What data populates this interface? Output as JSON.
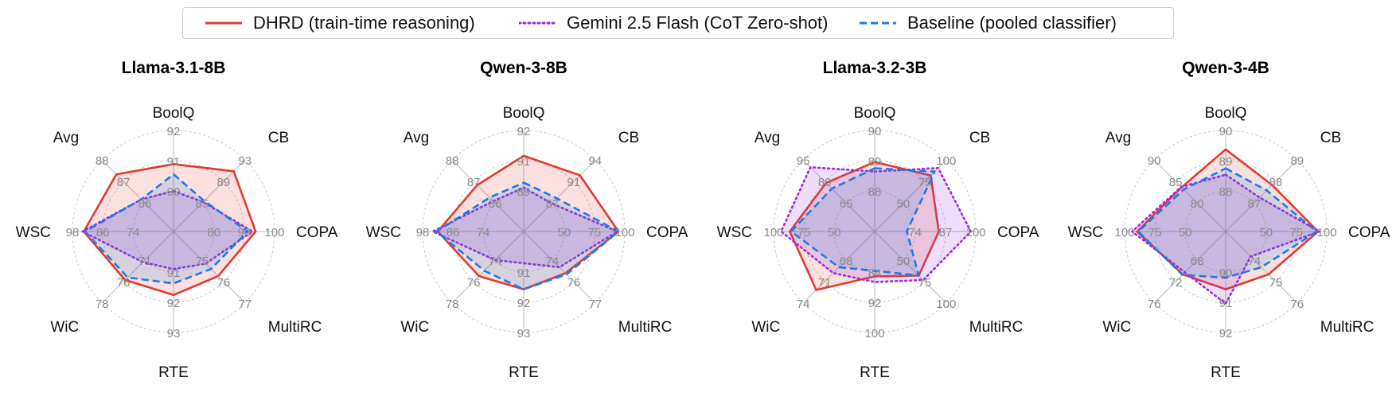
{
  "legend": [
    {
      "label": "DHRD (train-time reasoning)",
      "color": "#e03c31",
      "dash": "solid"
    },
    {
      "label": "Gemini 2.5 Flash (CoT Zero-shot)",
      "color": "#9b30d9",
      "dash": "dotted"
    },
    {
      "label": "Baseline (pooled classifier)",
      "color": "#1f7ae8",
      "dash": "dashed"
    }
  ],
  "chart_data": [
    {
      "type": "radar",
      "title": "Llama-3.1-8B",
      "axes": [
        "BoolQ",
        "CB",
        "COPA",
        "MultiRC",
        "RTE",
        "WiC",
        "WSC",
        "Avg"
      ],
      "tick_labels": [
        [
          "90",
          "91",
          "92"
        ],
        [
          "85",
          "89",
          "93"
        ],
        [
          "80",
          "90",
          "100"
        ],
        [
          "75",
          "76",
          "77"
        ],
        [
          "91",
          "92",
          "93"
        ],
        [
          "71",
          "76",
          "78"
        ],
        [
          "74",
          "86",
          "98"
        ],
        [
          "86",
          "87",
          "88"
        ]
      ],
      "axis_ranges": [
        [
          89,
          92
        ],
        [
          81,
          95
        ],
        [
          70,
          102
        ],
        [
          74,
          78
        ],
        [
          90,
          93.5
        ],
        [
          66,
          80
        ],
        [
          62,
          102
        ],
        [
          85,
          89
        ]
      ],
      "series": [
        {
          "name": "DHRD (train-time reasoning)",
          "values": [
            91.0,
            92.8,
            96,
            76.5,
            92.2,
            75.5,
            97.5,
            88.2
          ]
        },
        {
          "name": "Gemini 2.5 Flash (CoT Zero-shot)",
          "values": [
            90.2,
            86.8,
            95,
            75.8,
            91.3,
            72.0,
            98.0,
            86.8
          ]
        },
        {
          "name": "Baseline (pooled classifier)",
          "values": [
            90.7,
            87.0,
            93.5,
            76.1,
            91.8,
            75.0,
            97.0,
            86.8
          ]
        }
      ]
    },
    {
      "type": "radar",
      "title": "Qwen-3-8B",
      "axes": [
        "BoolQ",
        "CB",
        "COPA",
        "MultiRC",
        "RTE",
        "WiC",
        "WSC",
        "Avg"
      ],
      "tick_labels": [
        [
          "89",
          "91",
          "92"
        ],
        [
          "87",
          "91",
          "94"
        ],
        [
          "50",
          "75",
          "100"
        ],
        [
          "74",
          "76",
          "77"
        ],
        [
          "91",
          "92",
          "93"
        ],
        [
          "74",
          "76",
          "78"
        ],
        [
          "74",
          "86",
          "98"
        ],
        [
          "86",
          "87",
          "88"
        ]
      ],
      "axis_ranges": [
        [
          87,
          93
        ],
        [
          83,
          97
        ],
        [
          25,
          105
        ],
        [
          72,
          78
        ],
        [
          90,
          93.5
        ],
        [
          72,
          80
        ],
        [
          62,
          102
        ],
        [
          85,
          89
        ]
      ],
      "series": [
        {
          "name": "DHRD (train-time reasoning)",
          "values": [
            91.5,
            94.0,
            100,
            75.5,
            92.0,
            77.0,
            96.0,
            87.6
          ]
        },
        {
          "name": "Gemini 2.5 Flash (CoT Zero-shot)",
          "values": [
            89.6,
            88.5,
            99,
            75.0,
            91.1,
            75.2,
            98.0,
            86.7
          ]
        },
        {
          "name": "Baseline (pooled classifier)",
          "values": [
            89.9,
            89.5,
            100,
            75.6,
            92.0,
            76.4,
            96.5,
            86.9
          ]
        }
      ]
    },
    {
      "type": "radar",
      "title": "Llama-3.2-3B",
      "axes": [
        "BoolQ",
        "CB",
        "COPA",
        "MultiRC",
        "RTE",
        "WiC",
        "WSC",
        "Avg"
      ],
      "tick_labels": [
        [
          "88",
          "89",
          "90"
        ],
        [
          "50",
          "75",
          "100"
        ],
        [
          "74",
          "87",
          "100"
        ],
        [
          "50",
          "75",
          "100"
        ],
        [
          "84",
          "92",
          "100"
        ],
        [
          "68",
          "71",
          "74"
        ],
        [
          "50",
          "75",
          "100"
        ],
        [
          "65",
          "80",
          "95"
        ]
      ],
      "axis_ranges": [
        [
          87,
          90.2
        ],
        [
          25,
          106
        ],
        [
          61,
          102
        ],
        [
          25,
          106
        ],
        [
          76,
          103
        ],
        [
          65,
          76
        ],
        [
          25,
          106
        ],
        [
          50,
          100
        ]
      ],
      "series": [
        {
          "name": "DHRD (train-time reasoning)",
          "values": [
            89.2,
            88.5,
            87.0,
            75.0,
            88.0,
            74.0,
            93.0,
            84.0
          ]
        },
        {
          "name": "Gemini 2.5 Flash (CoT Zero-shot)",
          "values": [
            88.9,
            97.0,
            100.0,
            80.0,
            89.5,
            71.4,
            100.0,
            95.0
          ]
        },
        {
          "name": "Baseline (pooled classifier)",
          "values": [
            89.0,
            93.0,
            74.0,
            75.0,
            86.5,
            70.5,
            92.0,
            80.0
          ]
        }
      ]
    },
    {
      "type": "radar",
      "title": "Qwen-3-4B",
      "axes": [
        "BoolQ",
        "CB",
        "COPA",
        "MultiRC",
        "RTE",
        "WiC",
        "WSC",
        "Avg"
      ],
      "tick_labels": [
        [
          "88",
          "89",
          "90"
        ],
        [
          "87",
          "88",
          "89"
        ],
        [
          "50",
          "75",
          "100"
        ],
        [
          "74",
          "75",
          "76"
        ],
        [
          "90",
          "91",
          "92"
        ],
        [
          "68",
          "72",
          "76"
        ],
        [
          "50",
          "75",
          "100"
        ],
        [
          "80",
          "85",
          "90"
        ]
      ],
      "axis_ranges": [
        [
          87,
          90.2
        ],
        [
          86,
          90
        ],
        [
          25,
          106
        ],
        [
          73,
          77
        ],
        [
          89,
          92.5
        ],
        [
          64,
          78
        ],
        [
          25,
          106
        ],
        [
          75,
          92
        ]
      ],
      "series": [
        {
          "name": "DHRD (train-time reasoning)",
          "values": [
            89.6,
            88.6,
            99.0,
            75.4,
            91.0,
            72.4,
            96.0,
            85.5
          ]
        },
        {
          "name": "Gemini 2.5 Flash (CoT Zero-shot)",
          "values": [
            88.8,
            87.9,
            100.0,
            74.4,
            91.5,
            72.0,
            100.0,
            85.6
          ]
        },
        {
          "name": "Baseline (pooled classifier)",
          "values": [
            89.0,
            88.3,
            98.0,
            75.0,
            90.6,
            72.5,
            95.0,
            85.0
          ]
        }
      ]
    }
  ]
}
